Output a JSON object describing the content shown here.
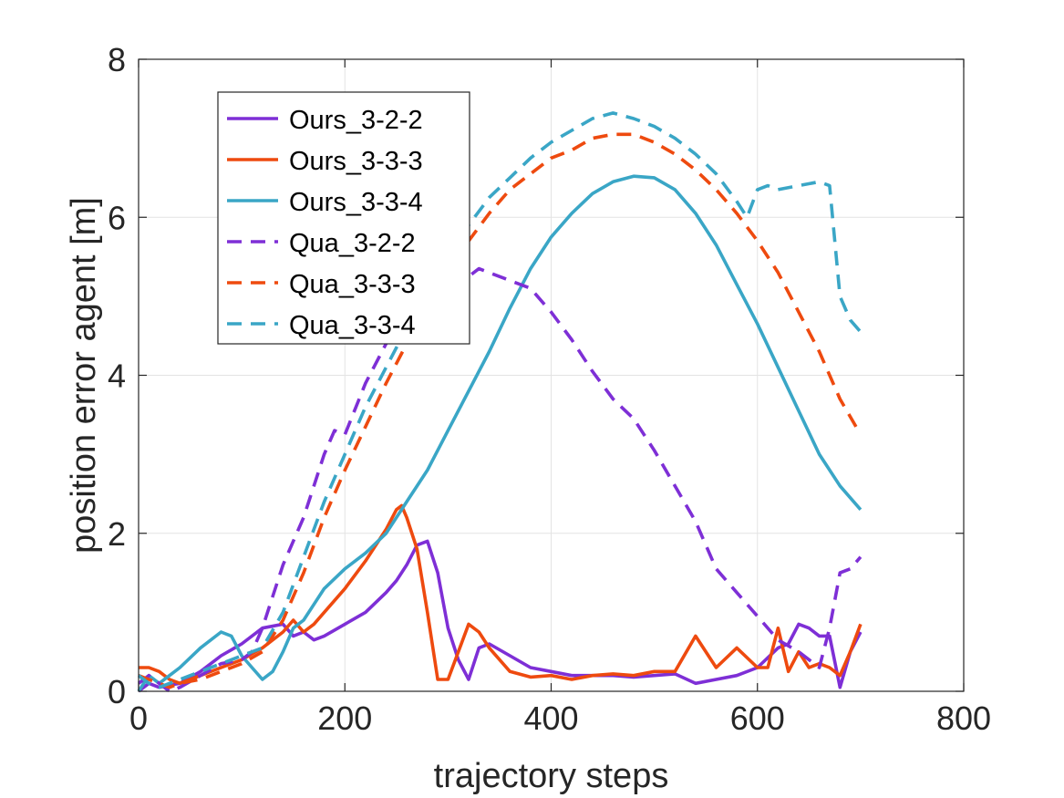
{
  "chart_data": {
    "type": "line",
    "title": "",
    "xlabel": "trajectory steps",
    "ylabel": "position error agent [m]",
    "xlim": [
      0,
      800
    ],
    "ylim": [
      0,
      8
    ],
    "xticks": [
      "0",
      "200",
      "400",
      "600",
      "800"
    ],
    "yticks": [
      "0",
      "2",
      "4",
      "6",
      "8"
    ],
    "grid": true,
    "legend_position": "top-left",
    "series": [
      {
        "name": "Ours_3-2-2",
        "color": "#7E2FD6",
        "dash": "solid",
        "x": [
          0,
          10,
          20,
          30,
          40,
          60,
          80,
          100,
          120,
          140,
          150,
          160,
          170,
          180,
          200,
          220,
          240,
          250,
          260,
          270,
          280,
          290,
          300,
          310,
          320,
          330,
          340,
          360,
          380,
          400,
          420,
          440,
          460,
          480,
          500,
          520,
          540,
          560,
          580,
          600,
          620,
          630,
          640,
          650,
          660,
          670,
          680,
          690,
          700
        ],
        "y": [
          0.0,
          0.1,
          0.05,
          0.08,
          0.1,
          0.25,
          0.45,
          0.6,
          0.8,
          0.85,
          0.7,
          0.75,
          0.65,
          0.7,
          0.85,
          1.0,
          1.25,
          1.4,
          1.6,
          1.85,
          1.9,
          1.5,
          0.8,
          0.4,
          0.15,
          0.55,
          0.6,
          0.45,
          0.3,
          0.25,
          0.2,
          0.2,
          0.2,
          0.18,
          0.2,
          0.22,
          0.1,
          0.15,
          0.2,
          0.3,
          0.55,
          0.6,
          0.85,
          0.8,
          0.7,
          0.7,
          0.05,
          0.5,
          0.75
        ]
      },
      {
        "name": "Ours_3-3-3",
        "color": "#EE4A0F",
        "dash": "solid",
        "x": [
          0,
          10,
          20,
          30,
          40,
          60,
          80,
          100,
          120,
          140,
          150,
          160,
          170,
          180,
          200,
          220,
          240,
          250,
          255,
          260,
          270,
          280,
          290,
          300,
          310,
          320,
          330,
          340,
          360,
          380,
          400,
          420,
          440,
          460,
          480,
          500,
          520,
          540,
          560,
          580,
          600,
          610,
          620,
          630,
          640,
          650,
          660,
          670,
          680,
          690,
          700
        ],
        "y": [
          0.3,
          0.3,
          0.25,
          0.15,
          0.1,
          0.2,
          0.3,
          0.4,
          0.55,
          0.75,
          0.9,
          0.75,
          0.85,
          1.0,
          1.3,
          1.65,
          2.05,
          2.3,
          2.35,
          2.2,
          1.8,
          1.0,
          0.15,
          0.15,
          0.5,
          0.85,
          0.75,
          0.55,
          0.25,
          0.18,
          0.2,
          0.15,
          0.2,
          0.22,
          0.2,
          0.25,
          0.25,
          0.7,
          0.3,
          0.55,
          0.3,
          0.3,
          0.8,
          0.25,
          0.5,
          0.3,
          0.35,
          0.3,
          0.2,
          0.5,
          0.85
        ]
      },
      {
        "name": "Ours_3-3-4",
        "color": "#3AA6C6",
        "dash": "solid",
        "x": [
          0,
          10,
          20,
          30,
          40,
          60,
          80,
          90,
          100,
          110,
          120,
          130,
          140,
          150,
          160,
          170,
          180,
          200,
          220,
          240,
          260,
          280,
          300,
          320,
          340,
          360,
          380,
          400,
          420,
          440,
          460,
          480,
          500,
          520,
          540,
          560,
          580,
          600,
          620,
          640,
          660,
          680,
          700
        ],
        "y": [
          0.0,
          0.2,
          0.1,
          0.2,
          0.3,
          0.55,
          0.75,
          0.7,
          0.45,
          0.3,
          0.15,
          0.25,
          0.5,
          0.8,
          0.9,
          1.1,
          1.3,
          1.55,
          1.75,
          2.0,
          2.4,
          2.8,
          3.3,
          3.8,
          4.3,
          4.85,
          5.35,
          5.75,
          6.05,
          6.3,
          6.45,
          6.52,
          6.5,
          6.35,
          6.05,
          5.65,
          5.15,
          4.65,
          4.1,
          3.55,
          3.0,
          2.6,
          2.3
        ]
      },
      {
        "name": "Qua_3-2-2",
        "color": "#7E2FD6",
        "dash": "dashed",
        "x": [
          0,
          10,
          20,
          30,
          40,
          60,
          80,
          100,
          110,
          120,
          130,
          140,
          160,
          180,
          190,
          200,
          220,
          240,
          260,
          280,
          300,
          320,
          330,
          340,
          360,
          380,
          400,
          420,
          440,
          460,
          480,
          500,
          520,
          540,
          560,
          580,
          600,
          620,
          640,
          660,
          670,
          680,
          690,
          700
        ],
        "y": [
          0.1,
          0.2,
          0.1,
          0.0,
          0.05,
          0.2,
          0.35,
          0.4,
          0.5,
          0.8,
          1.2,
          1.6,
          2.2,
          3.0,
          3.3,
          3.25,
          3.9,
          4.4,
          4.75,
          5.0,
          5.2,
          5.25,
          5.35,
          5.3,
          5.2,
          5.1,
          4.8,
          4.45,
          4.05,
          3.7,
          3.45,
          3.05,
          2.6,
          2.15,
          1.55,
          1.25,
          0.95,
          0.65,
          0.5,
          0.3,
          0.8,
          1.5,
          1.55,
          1.7
        ]
      },
      {
        "name": "Qua_3-3-3",
        "color": "#EE4A0F",
        "dash": "dashed",
        "x": [
          0,
          10,
          20,
          30,
          40,
          60,
          80,
          100,
          120,
          140,
          160,
          180,
          200,
          220,
          240,
          260,
          280,
          300,
          320,
          340,
          360,
          380,
          400,
          420,
          440,
          460,
          480,
          500,
          520,
          540,
          560,
          580,
          600,
          620,
          640,
          660,
          680,
          700
        ],
        "y": [
          0.2,
          0.15,
          0.1,
          0.05,
          0.1,
          0.15,
          0.25,
          0.35,
          0.5,
          0.9,
          1.5,
          2.2,
          2.8,
          3.35,
          3.9,
          4.4,
          4.85,
          5.3,
          5.7,
          6.05,
          6.35,
          6.55,
          6.75,
          6.85,
          7.0,
          7.05,
          7.05,
          6.95,
          6.8,
          6.6,
          6.35,
          6.05,
          5.7,
          5.3,
          4.8,
          4.3,
          3.7,
          3.25
        ]
      },
      {
        "name": "Qua_3-3-4",
        "color": "#3AA6C6",
        "dash": "dashed",
        "x": [
          0,
          10,
          20,
          30,
          40,
          60,
          80,
          100,
          120,
          140,
          160,
          180,
          200,
          220,
          240,
          260,
          280,
          300,
          320,
          340,
          360,
          380,
          400,
          420,
          440,
          460,
          480,
          500,
          520,
          540,
          560,
          580,
          590,
          600,
          610,
          620,
          640,
          660,
          670,
          680,
          690,
          700
        ],
        "y": [
          0.2,
          0.1,
          0.05,
          0.1,
          0.15,
          0.25,
          0.35,
          0.45,
          0.55,
          1.0,
          1.7,
          2.4,
          3.0,
          3.6,
          4.1,
          4.6,
          5.05,
          5.5,
          5.9,
          6.25,
          6.5,
          6.75,
          6.95,
          7.1,
          7.25,
          7.32,
          7.25,
          7.15,
          7.0,
          6.8,
          6.55,
          6.2,
          6.0,
          6.35,
          6.4,
          6.35,
          6.4,
          6.45,
          6.4,
          5.0,
          4.7,
          4.55
        ]
      }
    ]
  }
}
